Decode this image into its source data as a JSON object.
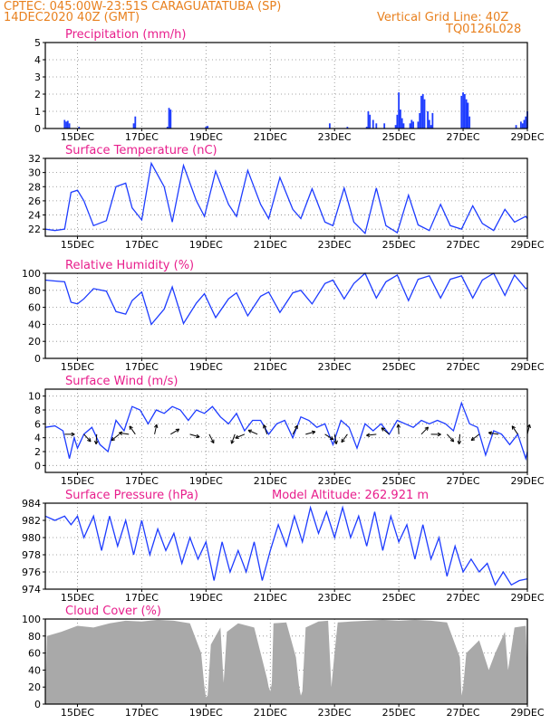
{
  "header": {
    "line1": "CPTEC:   045:00W-23:51S   CARAGUATATUBA (SP)",
    "line2": "14DEC2020 40Z (GMT)",
    "grid_note": "Vertical Grid Line: 40Z",
    "code": "TQ0126L028",
    "accent_color": "#e8801e",
    "title_color": "#e81e8c",
    "line_color": "#1e3cff"
  },
  "x_tick_labels": [
    "15DEC",
    "17DEC",
    "19DEC",
    "21DEC",
    "23DEC",
    "25DEC",
    "27DEC",
    "29DEC"
  ],
  "chart_data": [
    {
      "type": "bar",
      "title": "Precipitation (mm/h)",
      "ylim": [
        0,
        5
      ],
      "y_ticks": [
        "0",
        "1",
        "2",
        "3",
        "4",
        "5"
      ],
      "bars": [
        [
          14.6,
          0.5
        ],
        [
          14.65,
          0.4
        ],
        [
          14.7,
          0.45
        ],
        [
          14.75,
          0.3
        ],
        [
          15.05,
          0.1
        ],
        [
          16.75,
          0.3
        ],
        [
          16.8,
          0.7
        ],
        [
          17.8,
          0.1
        ],
        [
          17.85,
          1.2
        ],
        [
          17.9,
          1.1
        ],
        [
          19.0,
          0.1
        ],
        [
          19.05,
          0.15
        ],
        [
          22.85,
          0.3
        ],
        [
          23.4,
          0.1
        ],
        [
          24.0,
          0.1
        ],
        [
          24.05,
          1.0
        ],
        [
          24.1,
          0.8
        ],
        [
          24.2,
          0.5
        ],
        [
          24.3,
          0.3
        ],
        [
          24.55,
          0.3
        ],
        [
          24.9,
          0.2
        ],
        [
          24.95,
          0.8
        ],
        [
          25.0,
          2.1
        ],
        [
          25.05,
          1.1
        ],
        [
          25.1,
          0.6
        ],
        [
          25.15,
          0.3
        ],
        [
          25.35,
          0.3
        ],
        [
          25.4,
          0.5
        ],
        [
          25.45,
          0.4
        ],
        [
          25.6,
          0.4
        ],
        [
          25.65,
          0.9
        ],
        [
          25.7,
          1.9
        ],
        [
          25.75,
          2.0
        ],
        [
          25.8,
          1.7
        ],
        [
          25.9,
          1.0
        ],
        [
          25.95,
          0.5
        ],
        [
          26.0,
          0.2
        ],
        [
          26.05,
          0.9
        ],
        [
          26.95,
          1.9
        ],
        [
          27.0,
          2.1
        ],
        [
          27.05,
          2.0
        ],
        [
          27.1,
          1.7
        ],
        [
          27.15,
          1.5
        ],
        [
          27.2,
          0.7
        ],
        [
          28.65,
          0.2
        ],
        [
          28.8,
          0.4
        ],
        [
          28.85,
          0.3
        ],
        [
          28.9,
          0.5
        ],
        [
          28.95,
          0.7
        ],
        [
          29.0,
          1.0
        ]
      ]
    },
    {
      "type": "line",
      "title": "Surface Temperature (nC)",
      "ylim": [
        21,
        32
      ],
      "y_ticks": [
        "22",
        "24",
        "26",
        "28",
        "30",
        "32"
      ],
      "x": [
        14.0,
        14.3,
        14.6,
        14.8,
        15.0,
        15.2,
        15.5,
        15.9,
        16.2,
        16.5,
        16.7,
        17.0,
        17.3,
        17.7,
        17.95,
        18.3,
        18.7,
        18.95,
        19.3,
        19.7,
        19.95,
        20.3,
        20.7,
        20.95,
        21.3,
        21.7,
        21.95,
        22.3,
        22.7,
        22.95,
        23.3,
        23.6,
        23.95,
        24.3,
        24.6,
        24.95,
        25.3,
        25.6,
        25.95,
        26.3,
        26.6,
        26.95,
        27.3,
        27.6,
        27.95,
        28.3,
        28.6,
        28.95,
        29.0
      ],
      "y": [
        22.0,
        21.8,
        22.0,
        27.2,
        27.5,
        26.0,
        22.5,
        23.2,
        28.0,
        28.5,
        25.0,
        23.3,
        31.3,
        28.0,
        23.0,
        31.0,
        26.0,
        23.8,
        30.2,
        25.5,
        23.8,
        30.3,
        25.5,
        23.5,
        29.3,
        24.8,
        23.5,
        27.7,
        23.0,
        22.5,
        27.8,
        23.0,
        21.4,
        27.8,
        22.5,
        21.5,
        26.8,
        22.6,
        21.8,
        25.5,
        22.5,
        22.0,
        25.3,
        22.8,
        21.8,
        24.8,
        23.0,
        23.8,
        23.5
      ]
    },
    {
      "type": "line",
      "title": "Relative Humidity (%)",
      "ylim": [
        0,
        100
      ],
      "y_ticks": [
        "0",
        "20",
        "40",
        "60",
        "80",
        "100"
      ],
      "x": [
        14.0,
        14.3,
        14.6,
        14.8,
        15.0,
        15.2,
        15.5,
        15.9,
        16.2,
        16.5,
        16.7,
        17.0,
        17.3,
        17.7,
        17.95,
        18.3,
        18.7,
        18.95,
        19.3,
        19.7,
        19.95,
        20.3,
        20.7,
        20.95,
        21.3,
        21.7,
        21.95,
        22.3,
        22.7,
        22.95,
        23.3,
        23.6,
        23.95,
        24.3,
        24.6,
        24.95,
        25.3,
        25.6,
        25.95,
        26.3,
        26.6,
        26.95,
        27.3,
        27.6,
        27.95,
        28.3,
        28.6,
        28.95,
        29.0
      ],
      "y": [
        92,
        91,
        90,
        66,
        64,
        70,
        82,
        79,
        55,
        52,
        68,
        78,
        40,
        58,
        84,
        41,
        65,
        76,
        48,
        70,
        77,
        50,
        73,
        78,
        54,
        77,
        80,
        64,
        88,
        92,
        70,
        88,
        100,
        71,
        90,
        98,
        68,
        93,
        97,
        71,
        93,
        97,
        71,
        92,
        100,
        74,
        98,
        82,
        83
      ]
    },
    {
      "type": "line",
      "title": "Surface Wind (m/s)",
      "ylim": [
        -1,
        11
      ],
      "y_ticks": [
        "0",
        "2",
        "4",
        "6",
        "8",
        "10"
      ],
      "x": [
        14.0,
        14.3,
        14.55,
        14.75,
        14.9,
        15.0,
        15.2,
        15.45,
        15.7,
        15.95,
        16.2,
        16.45,
        16.7,
        16.95,
        17.2,
        17.45,
        17.7,
        17.95,
        18.2,
        18.45,
        18.7,
        18.95,
        19.2,
        19.45,
        19.7,
        19.95,
        20.2,
        20.45,
        20.7,
        20.95,
        21.2,
        21.45,
        21.7,
        21.95,
        22.2,
        22.45,
        22.7,
        22.95,
        23.2,
        23.45,
        23.7,
        23.95,
        24.2,
        24.45,
        24.7,
        24.95,
        25.2,
        25.45,
        25.7,
        25.95,
        26.2,
        26.45,
        26.7,
        26.95,
        27.2,
        27.45,
        27.7,
        27.95,
        28.2,
        28.45,
        28.7,
        28.95,
        29.0
      ],
      "y": [
        5.5,
        5.7,
        5.0,
        1.0,
        4.0,
        2.5,
        4.5,
        5.5,
        3.0,
        2.0,
        6.5,
        5.0,
        8.5,
        8.0,
        6.0,
        8.0,
        7.5,
        8.5,
        8.0,
        6.5,
        8.0,
        7.5,
        8.5,
        7.0,
        6.0,
        7.5,
        5.0,
        6.5,
        6.5,
        4.5,
        6.0,
        6.5,
        4.0,
        7.0,
        6.5,
        5.5,
        6.0,
        3.0,
        6.5,
        5.5,
        2.5,
        6.0,
        5.0,
        6.0,
        4.5,
        6.5,
        6.0,
        5.5,
        6.5,
        6.0,
        6.5,
        6.0,
        5.0,
        9.0,
        6.0,
        5.5,
        1.5,
        5.0,
        4.5,
        3.0,
        4.5,
        1.0,
        2.0
      ],
      "vector_times": [
        14.6,
        15.2,
        15.6,
        16.3,
        16.6,
        16.8,
        17.4,
        17.9,
        18.5,
        19.1,
        19.9,
        20.2,
        20.6,
        20.9,
        21.7,
        22.1,
        22.7,
        23.0,
        23.4,
        24.3,
        24.7,
        25.0,
        25.7,
        26.0,
        26.5,
        26.9,
        27.5,
        28.1,
        28.7,
        29.0
      ]
    },
    {
      "type": "line",
      "title": "Surface Pressure (hPa)",
      "annotation": "Model Altitude: 262.921 m",
      "ylim": [
        974,
        984
      ],
      "y_ticks": [
        "974",
        "976",
        "978",
        "980",
        "982",
        "984"
      ],
      "x": [
        14.0,
        14.3,
        14.6,
        14.8,
        15.0,
        15.2,
        15.5,
        15.75,
        16.0,
        16.25,
        16.5,
        16.75,
        17.0,
        17.25,
        17.5,
        17.75,
        18.0,
        18.25,
        18.5,
        18.75,
        19.0,
        19.25,
        19.5,
        19.75,
        20.0,
        20.25,
        20.5,
        20.75,
        21.0,
        21.25,
        21.5,
        21.75,
        22.0,
        22.25,
        22.5,
        22.75,
        23.0,
        23.25,
        23.5,
        23.75,
        24.0,
        24.25,
        24.5,
        24.75,
        25.0,
        25.25,
        25.5,
        25.75,
        26.0,
        26.25,
        26.5,
        26.75,
        27.0,
        27.25,
        27.5,
        27.75,
        28.0,
        28.25,
        28.5,
        28.75,
        29.0
      ],
      "y": [
        982.5,
        982.0,
        982.5,
        981.5,
        982.5,
        980.0,
        982.5,
        978.5,
        982.5,
        979.0,
        982.0,
        978.0,
        982.0,
        978.0,
        981.0,
        978.5,
        980.5,
        977.0,
        980.0,
        977.5,
        979.5,
        975.0,
        979.5,
        976.0,
        978.5,
        976.0,
        979.5,
        975.0,
        978.5,
        981.5,
        979.0,
        982.5,
        979.5,
        983.5,
        980.5,
        983.0,
        980.0,
        983.5,
        980.0,
        982.5,
        979.0,
        983.0,
        978.5,
        982.5,
        979.5,
        981.5,
        977.5,
        981.5,
        977.5,
        980.0,
        975.5,
        979.0,
        976.0,
        977.5,
        976.0,
        977.0,
        974.5,
        976.0,
        974.5,
        975.0,
        975.2
      ]
    },
    {
      "type": "area",
      "title": "Cloud Cover (%)",
      "ylim": [
        0,
        100
      ],
      "y_ticks": [
        "0",
        "20",
        "40",
        "60",
        "80",
        "100"
      ],
      "x": [
        14.0,
        14.05,
        14.5,
        15.0,
        15.5,
        16.0,
        16.5,
        17.0,
        17.5,
        18.0,
        18.5,
        18.85,
        18.95,
        19.0,
        19.05,
        19.15,
        19.45,
        19.55,
        19.65,
        20.0,
        20.5,
        20.9,
        20.95,
        21.0,
        21.05,
        21.1,
        21.5,
        21.8,
        21.9,
        21.95,
        22.0,
        22.1,
        22.5,
        22.8,
        22.9,
        23.0,
        23.1,
        23.5,
        24.0,
        24.5,
        25.0,
        25.5,
        26.0,
        26.5,
        26.9,
        26.95,
        27.0,
        27.1,
        27.5,
        27.8,
        28.0,
        28.3,
        28.4,
        28.6,
        28.95,
        29.0
      ],
      "y": [
        0,
        80,
        85,
        92,
        90,
        95,
        98,
        97,
        99,
        98,
        95,
        60,
        20,
        8,
        10,
        70,
        90,
        25,
        85,
        95,
        90,
        30,
        20,
        15,
        25,
        95,
        96,
        55,
        20,
        10,
        15,
        90,
        97,
        98,
        20,
        60,
        96,
        97,
        98,
        99,
        98,
        99,
        98,
        96,
        55,
        10,
        20,
        60,
        75,
        40,
        60,
        85,
        40,
        90,
        92,
        40
      ]
    }
  ]
}
